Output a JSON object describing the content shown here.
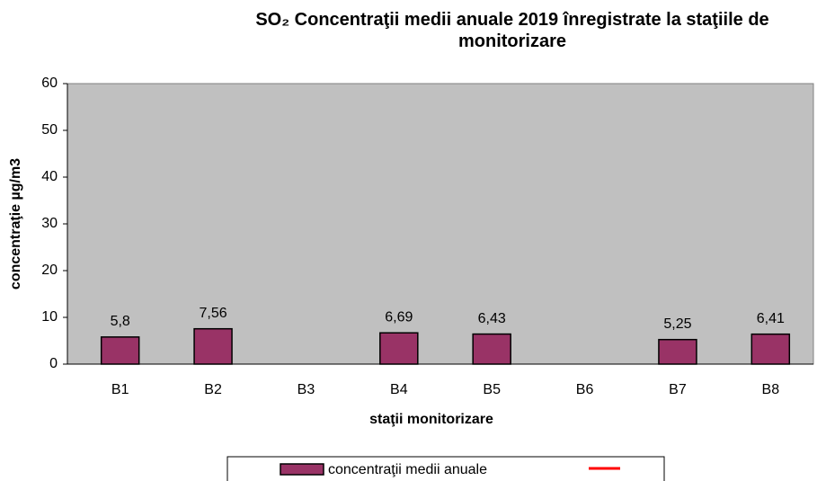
{
  "chart_data": {
    "type": "bar",
    "title": "SO₂ Concentraţii medii anuale 2019 înregistrate la staţiile de monitorizare",
    "x_label": "staţii monitorizare",
    "y_label": "concentraţie µg/m3",
    "categories": [
      "B1",
      "B2",
      "B3",
      "B4",
      "B5",
      "B6",
      "B7",
      "B8"
    ],
    "series": [
      {
        "name": "concentraţii medii anuale",
        "color": "#993366",
        "values": [
          5.8,
          7.56,
          null,
          6.69,
          6.43,
          null,
          5.25,
          6.41
        ],
        "value_labels": [
          "5,8",
          "7,56",
          null,
          "6,69",
          "6,43",
          null,
          "5,25",
          "6,41"
        ]
      },
      {
        "type": "line",
        "color": "#ff0000",
        "values": [
          null,
          null,
          null,
          null,
          null,
          null,
          null,
          null
        ]
      }
    ],
    "ylim": [
      0,
      60
    ],
    "yticks": [
      0,
      10,
      20,
      30,
      40,
      50,
      60
    ],
    "grid": false,
    "plot_background": "#c0c0c0",
    "legend": "bottom"
  }
}
